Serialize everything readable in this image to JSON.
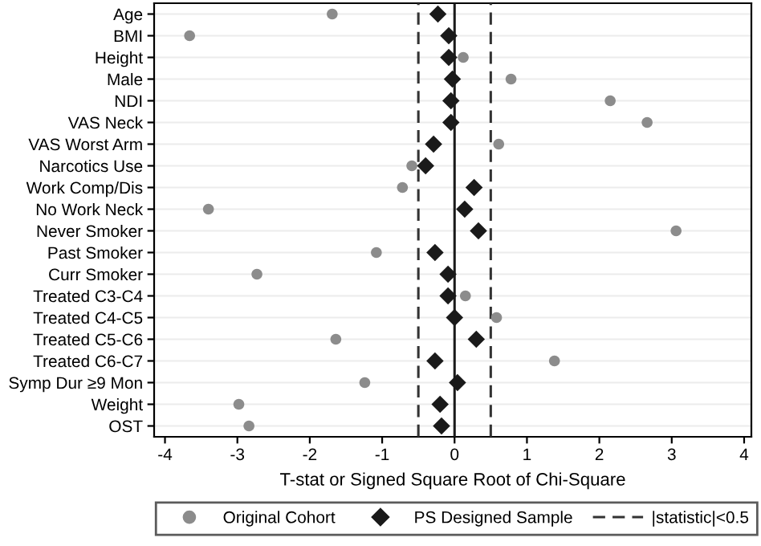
{
  "chart_data": {
    "type": "scatter",
    "orientation": "horizontal",
    "xlabel": "T-stat or Signed Square Root of Chi-Square",
    "categories": [
      "Age",
      "BMI",
      "Height",
      "Male",
      "NDI",
      "VAS Neck",
      "VAS Worst Arm",
      "Narcotics Use",
      "Work Comp/Dis",
      "No Work Neck",
      "Never Smoker",
      "Past Smoker",
      "Curr Smoker",
      "Treated C3-C4",
      "Treated C4-C5",
      "Treated C5-C6",
      "Treated C6-C7",
      "Symp Dur ≥9 Mon",
      "Weight",
      "OST"
    ],
    "series": [
      {
        "name": "Original Cohort",
        "color": "#8c8c8c",
        "marker": "circle",
        "values": [
          -1.69,
          -3.66,
          0.12,
          0.78,
          2.15,
          2.66,
          0.61,
          -0.59,
          -0.72,
          -3.4,
          3.06,
          -1.08,
          -2.73,
          0.15,
          0.58,
          -1.64,
          1.38,
          -1.24,
          -2.98,
          -2.84
        ]
      },
      {
        "name": "PS Designed Sample",
        "color": "#1a1a1a",
        "marker": "diamond",
        "values": [
          -0.23,
          -0.08,
          -0.08,
          -0.03,
          -0.05,
          -0.05,
          -0.29,
          -0.4,
          0.27,
          0.14,
          0.33,
          -0.27,
          -0.09,
          -0.09,
          0.0,
          0.3,
          -0.27,
          0.04,
          -0.2,
          -0.18
        ]
      }
    ],
    "xlim": [
      -4.15,
      4.1
    ],
    "xticks": [
      -4,
      -3,
      -2,
      -1,
      0,
      1,
      2,
      3,
      4
    ],
    "ref_lines": [
      {
        "axis": "x",
        "value": 0,
        "line_style": "solid",
        "color": "#1a1a1a"
      },
      {
        "axis": "x",
        "value": -0.5,
        "label": "|statistic|<0.5",
        "line_style": "dashed",
        "color": "#333333"
      },
      {
        "axis": "x",
        "value": 0.5,
        "line_style": "dashed",
        "color": "#333333"
      }
    ],
    "grid": "y",
    "legend": "bottom"
  }
}
